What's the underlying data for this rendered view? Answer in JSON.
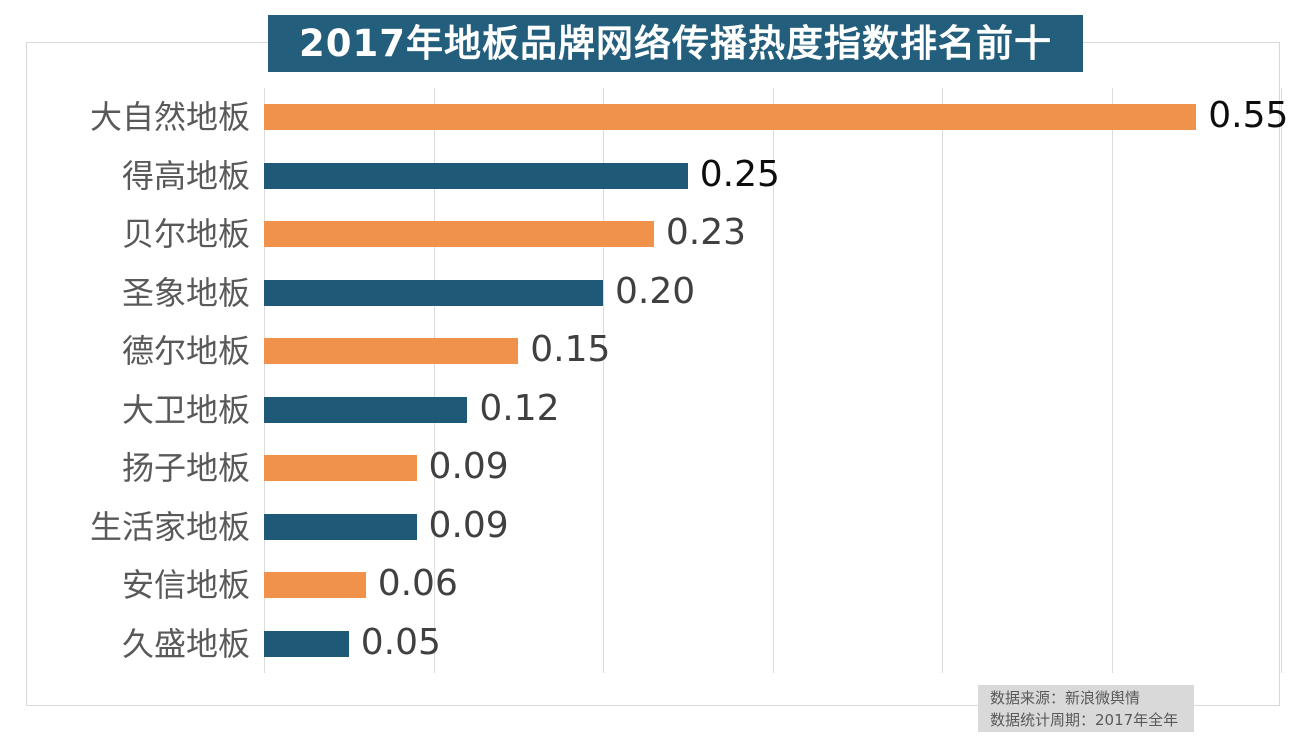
{
  "chart_data": {
    "type": "bar",
    "orientation": "horizontal",
    "title": "2017年地板品牌网络传播热度指数排名前十",
    "categories": [
      "大自然地板",
      "得高地板",
      "贝尔地板",
      "圣象地板",
      "德尔地板",
      "大卫地板",
      "扬子地板",
      "生活家地板",
      "安信地板",
      "久盛地板"
    ],
    "values": [
      0.55,
      0.25,
      0.23,
      0.2,
      0.15,
      0.12,
      0.09,
      0.09,
      0.06,
      0.05
    ],
    "value_labels": [
      "0.55",
      "0.25",
      "0.23",
      "0.20",
      "0.15",
      "0.12",
      "0.09",
      "0.09",
      "0.06",
      "0.05"
    ],
    "xlim": [
      0,
      0.6
    ],
    "gridline_values": [
      0,
      0.1,
      0.2,
      0.3,
      0.4,
      0.5,
      0.6
    ],
    "grid": true,
    "legend": false,
    "bar_color_even_rows": "#F0924C",
    "bar_color_odd_rows": "#1E5A78",
    "value_label_color_default": "#404040",
    "value_label_color_emphasis": "#0D0D0D",
    "emphasized_value_rows": [
      0,
      1
    ]
  },
  "title_banner": {
    "text": "2017年地板品牌网络传播热度指数排名前十",
    "background": "#235E7D",
    "text_color": "#FFFFFF"
  },
  "source_note": {
    "line1": "数据来源：新浪微舆情",
    "line2": "数据统计周期：2017年全年",
    "background": "#D9D9D9",
    "text_color": "#595959"
  },
  "colors": {
    "frame_border": "#D9D9D9",
    "gridline": "#DBDBDB",
    "category_text": "#595959",
    "page_background": "#FFFFFF"
  }
}
